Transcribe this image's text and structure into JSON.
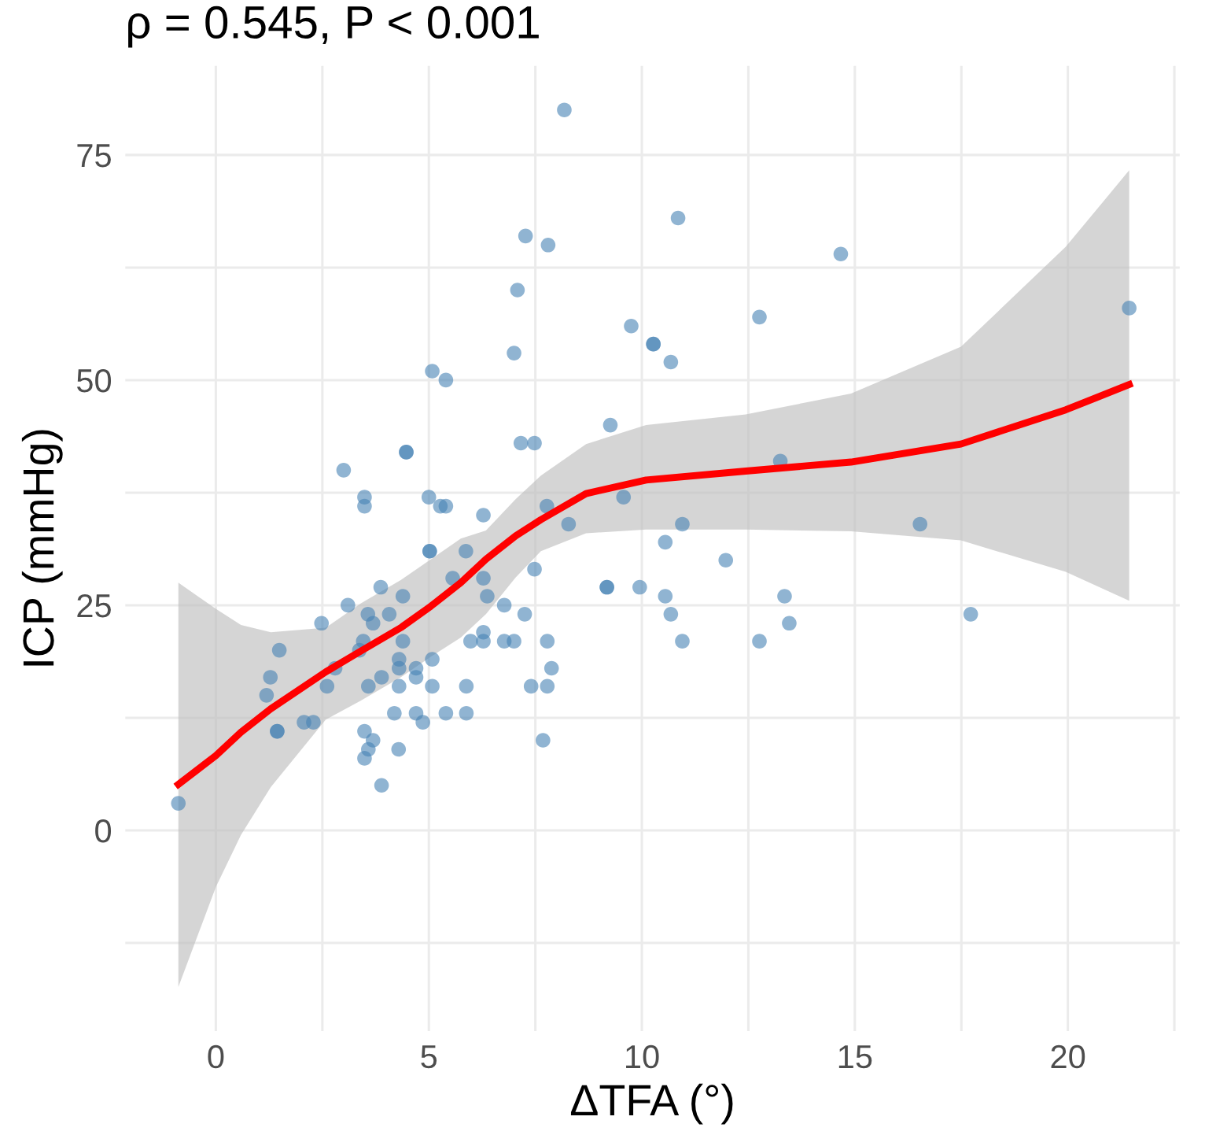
{
  "chart_data": {
    "type": "scatter",
    "title": "ρ = 0.545, P < 0.001",
    "xlabel": "ΔTFA (°)",
    "ylabel": "ICP (mmHg)",
    "xlim": [
      -2.125,
      22.625
    ],
    "ylim": [
      -22.3,
      84.9
    ],
    "xticks": [
      0,
      {
        "value": 2.5,
        "label": null
      },
      5,
      {
        "value": 7.5,
        "label": null
      },
      10,
      {
        "value": 12.5,
        "label": null
      },
      15,
      {
        "value": 17.5,
        "label": null
      },
      20,
      {
        "value": 22.5,
        "label": null
      }
    ],
    "yticks": [
      {
        "value": -12.5,
        "label": null
      },
      0,
      {
        "value": 12.5,
        "label": null
      },
      25,
      {
        "value": 37.5,
        "label": null
      },
      50,
      {
        "value": 62.5,
        "label": null
      },
      75
    ],
    "grid": true,
    "legend": false,
    "series": [
      {
        "color": "#4682b4",
        "marker": "circle",
        "x": [
          8.18,
          7.27,
          7.8,
          7.08,
          9.75,
          7.0,
          5.08,
          5.4,
          9.26,
          7.16,
          7.48,
          4.47,
          4.47,
          3.0,
          3.49,
          3.49,
          5.0,
          5.27,
          5.4,
          6.28,
          7.77,
          9.57,
          8.28,
          5.02,
          5.02,
          5.87,
          7.48,
          3.87,
          4.39,
          5.56,
          6.28,
          6.37,
          3.1,
          3.57,
          3.69,
          4.07,
          2.48,
          6.77,
          7.25,
          3.46,
          3.37,
          4.39,
          5.98,
          6.28,
          6.28,
          6.77,
          7.0,
          7.78,
          1.49,
          2.8,
          4.3,
          4.3,
          4.7,
          5.08,
          4.7,
          7.88,
          1.28,
          1.19,
          2.61,
          3.58,
          3.89,
          4.3,
          5.08,
          5.88,
          7.4,
          7.78,
          2.07,
          2.29,
          1.44,
          1.44,
          4.19,
          4.7,
          4.86,
          5.4,
          5.88,
          3.49,
          3.69,
          3.58,
          3.49,
          4.29,
          3.89,
          7.68,
          -0.88,
          9.18,
          9.18,
          9.95,
          10.85,
          14.67,
          10.27,
          10.27,
          10.68,
          12.76,
          21.44,
          13.25,
          10.95,
          16.53,
          10.55,
          11.97,
          10.55,
          10.68,
          10.95,
          13.35,
          13.46,
          12.76,
          17.72
        ],
        "values": [
          80,
          66,
          65,
          60,
          56,
          53,
          51,
          50,
          45,
          43,
          43,
          42,
          42,
          40,
          37,
          36,
          37,
          36,
          36,
          35,
          36,
          37,
          34,
          31,
          31,
          31,
          29,
          27,
          26,
          28,
          28,
          26,
          25,
          24,
          23,
          24,
          23,
          25,
          24,
          21,
          20,
          21,
          21,
          21,
          22,
          21,
          21,
          21,
          20,
          18,
          19,
          18,
          18,
          19,
          17,
          18,
          17,
          15,
          16,
          16,
          17,
          16,
          16,
          16,
          16,
          16,
          12,
          12,
          11,
          11,
          13,
          13,
          12,
          13,
          13,
          11,
          10,
          9,
          8,
          9,
          5,
          10,
          3,
          27,
          27,
          27,
          68,
          64,
          54,
          54,
          52,
          57,
          58,
          41,
          34,
          34,
          32,
          30,
          26,
          24,
          21,
          26,
          23,
          21,
          24
        ]
      },
      {
        "type": "line",
        "color": "#ff0000",
        "marker": "none",
        "line_style": "solid",
        "x": [
          -0.88,
          0,
          0.59,
          1.29,
          2.58,
          3.4,
          4.34,
          5.05,
          5.75,
          6.34,
          7.04,
          7.63,
          8.69,
          10.1,
          12.44,
          14.91,
          17.49,
          19.95,
          21.44
        ],
        "values": [
          5.1,
          8.3,
          10.9,
          13.5,
          17.6,
          19.9,
          22.5,
          24.9,
          27.5,
          30.1,
          32.7,
          34.5,
          37.4,
          38.9,
          39.9,
          40.9,
          42.9,
          46.7,
          49.5
        ],
        "lower": [
          -17.4,
          -6.3,
          -0.5,
          4.8,
          12.3,
          14.4,
          17.0,
          19.3,
          21.4,
          24.0,
          28.1,
          31.0,
          33.0,
          33.4,
          33.4,
          33.2,
          32.2,
          28.7,
          25.5
        ],
        "upper": [
          27.5,
          24.6,
          22.8,
          22.0,
          22.5,
          25.2,
          27.8,
          30.1,
          32.4,
          33.3,
          36.8,
          39.4,
          42.9,
          45.0,
          46.2,
          48.5,
          53.7,
          64.8,
          73.3
        ]
      }
    ]
  }
}
